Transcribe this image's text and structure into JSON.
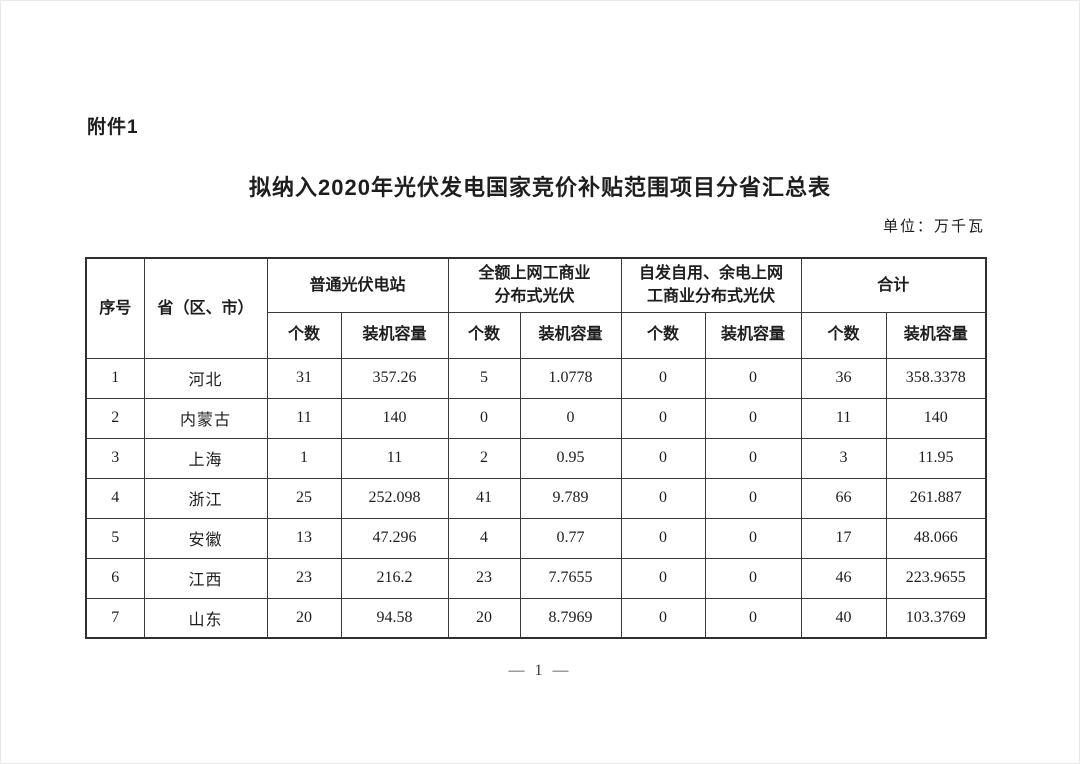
{
  "page": {
    "attachment_label": "附件1",
    "title": "拟纳入2020年光伏发电国家竞价补贴范围项目分省汇总表",
    "unit_note": "单位：万千瓦",
    "page_number": "— 1 —"
  },
  "table": {
    "corner_headers": {
      "seq": "序号",
      "province": "省（区、市）"
    },
    "group_headers": [
      "普通光伏电站",
      "全额上网工商业\n分布式光伏",
      "自发自用、余电上网\n工商业分布式光伏",
      "合计"
    ],
    "sub_headers": {
      "count": "个数",
      "capacity": "装机容量"
    },
    "rows": [
      {
        "seq": "1",
        "province": "河北",
        "cells": [
          "31",
          "357.26",
          "5",
          "1.0778",
          "0",
          "0",
          "36",
          "358.3378"
        ]
      },
      {
        "seq": "2",
        "province": "内蒙古",
        "cells": [
          "11",
          "140",
          "0",
          "0",
          "0",
          "0",
          "11",
          "140"
        ]
      },
      {
        "seq": "3",
        "province": "上海",
        "cells": [
          "1",
          "11",
          "2",
          "0.95",
          "0",
          "0",
          "3",
          "11.95"
        ]
      },
      {
        "seq": "4",
        "province": "浙江",
        "cells": [
          "25",
          "252.098",
          "41",
          "9.789",
          "0",
          "0",
          "66",
          "261.887"
        ]
      },
      {
        "seq": "5",
        "province": "安徽",
        "cells": [
          "13",
          "47.296",
          "4",
          "0.77",
          "0",
          "0",
          "17",
          "48.066"
        ]
      },
      {
        "seq": "6",
        "province": "江西",
        "cells": [
          "23",
          "216.2",
          "23",
          "7.7655",
          "0",
          "0",
          "46",
          "223.9655"
        ]
      },
      {
        "seq": "7",
        "province": "山东",
        "cells": [
          "20",
          "94.58",
          "20",
          "8.7969",
          "0",
          "0",
          "40",
          "103.3769"
        ]
      }
    ]
  },
  "chart_data": {
    "type": "table",
    "title": "拟纳入2020年光伏发电国家竞价补贴范围项目分省汇总表",
    "unit": "万千瓦",
    "categories": [
      "河北",
      "内蒙古",
      "上海",
      "浙江",
      "安徽",
      "江西",
      "山东"
    ],
    "series": [
      {
        "name": "普通光伏电站-个数",
        "values": [
          31,
          11,
          1,
          25,
          13,
          23,
          20
        ]
      },
      {
        "name": "普通光伏电站-装机容量",
        "values": [
          357.26,
          140,
          11,
          252.098,
          47.296,
          216.2,
          94.58
        ]
      },
      {
        "name": "全额上网工商业分布式光伏-个数",
        "values": [
          5,
          0,
          2,
          41,
          4,
          23,
          20
        ]
      },
      {
        "name": "全额上网工商业分布式光伏-装机容量",
        "values": [
          1.0778,
          0,
          0.95,
          9.789,
          0.77,
          7.7655,
          8.7969
        ]
      },
      {
        "name": "自发自用、余电上网工商业分布式光伏-个数",
        "values": [
          0,
          0,
          0,
          0,
          0,
          0,
          0
        ]
      },
      {
        "name": "自发自用、余电上网工商业分布式光伏-装机容量",
        "values": [
          0,
          0,
          0,
          0,
          0,
          0,
          0
        ]
      },
      {
        "name": "合计-个数",
        "values": [
          36,
          11,
          3,
          66,
          17,
          46,
          40
        ]
      },
      {
        "name": "合计-装机容量",
        "values": [
          358.3378,
          140,
          11.95,
          261.887,
          48.066,
          223.9655,
          103.3769
        ]
      }
    ]
  }
}
